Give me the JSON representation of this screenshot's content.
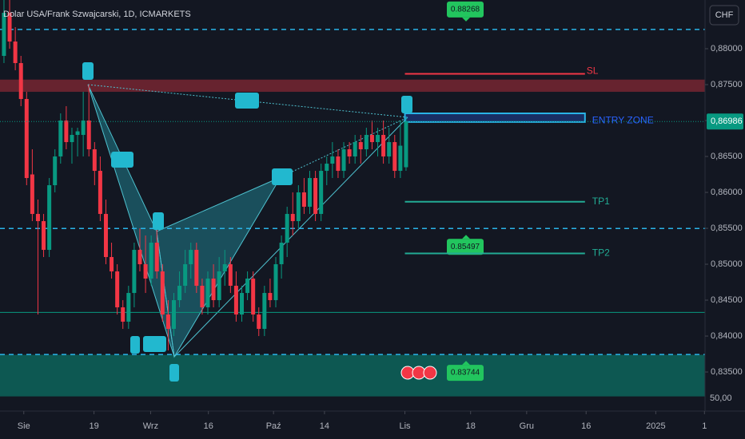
{
  "header": {
    "title": "Dolar USA/Frank Szwajcarski, 1D, ICMARKETS",
    "currency": "CHF"
  },
  "chart_data": {
    "type": "candlestick",
    "up_color": "#089981",
    "down_color": "#f23645",
    "ylim": [
      0.82956,
      0.88678
    ],
    "yticks": [
      {
        "value": 0.835,
        "label": "0,83500"
      },
      {
        "value": 0.84,
        "label": "0,84000"
      },
      {
        "value": 0.845,
        "label": "0,84500"
      },
      {
        "value": 0.85,
        "label": "0,85000"
      },
      {
        "value": 0.855,
        "label": "0,85500"
      },
      {
        "value": 0.86,
        "label": "0,86000"
      },
      {
        "value": 0.865,
        "label": "0,86500"
      },
      {
        "value": 0.87,
        "label": "0,87000"
      },
      {
        "value": 0.875,
        "label": "0,87500"
      },
      {
        "value": 0.88,
        "label": "0,88000"
      }
    ],
    "extra_axis_label": "50,00",
    "xlim": [
      -0.7,
      123.8
    ],
    "xticks": [
      {
        "value": 3.5,
        "label": "Sie"
      },
      {
        "value": 15.9,
        "label": "19"
      },
      {
        "value": 25.9,
        "label": "Wrz"
      },
      {
        "value": 36.1,
        "label": "16"
      },
      {
        "value": 47.6,
        "label": "Paź"
      },
      {
        "value": 56.6,
        "label": "14"
      },
      {
        "value": 70.8,
        "label": "Lis"
      },
      {
        "value": 82.4,
        "label": "18"
      },
      {
        "value": 92.3,
        "label": "Gru"
      },
      {
        "value": 102.8,
        "label": "16"
      },
      {
        "value": 115.1,
        "label": "2025"
      },
      {
        "value": 123.7,
        "label": "1"
      }
    ],
    "ohlc": [
      [
        0.879,
        0.887,
        0.878,
        0.885
      ],
      [
        0.885,
        0.8868,
        0.88,
        0.881
      ],
      [
        0.881,
        0.883,
        0.877,
        0.878
      ],
      [
        0.878,
        0.879,
        0.872,
        0.873
      ],
      [
        0.873,
        0.874,
        0.861,
        0.862
      ],
      [
        0.8625,
        0.866,
        0.856,
        0.857
      ],
      [
        0.857,
        0.859,
        0.843,
        0.856
      ],
      [
        0.856,
        0.857,
        0.851,
        0.852
      ],
      [
        0.852,
        0.862,
        0.851,
        0.861
      ],
      [
        0.861,
        0.866,
        0.86,
        0.865
      ],
      [
        0.865,
        0.871,
        0.864,
        0.87
      ],
      [
        0.87,
        0.872,
        0.866,
        0.867
      ],
      [
        0.867,
        0.869,
        0.864,
        0.868
      ],
      [
        0.868,
        0.869,
        0.865,
        0.8685
      ],
      [
        0.868,
        0.874,
        0.865,
        0.87
      ],
      [
        0.87,
        0.875,
        0.865,
        0.866
      ],
      [
        0.866,
        0.867,
        0.861,
        0.863
      ],
      [
        0.863,
        0.865,
        0.856,
        0.857
      ],
      [
        0.857,
        0.859,
        0.85,
        0.851
      ],
      [
        0.851,
        0.853,
        0.848,
        0.849
      ],
      [
        0.849,
        0.85,
        0.843,
        0.844
      ],
      [
        0.844,
        0.845,
        0.841,
        0.842
      ],
      [
        0.842,
        0.847,
        0.841,
        0.846
      ],
      [
        0.846,
        0.853,
        0.844,
        0.852
      ],
      [
        0.852,
        0.855,
        0.849,
        0.85
      ],
      [
        0.85,
        0.854,
        0.846,
        0.848
      ],
      [
        0.848,
        0.854,
        0.847,
        0.853
      ],
      [
        0.853,
        0.855,
        0.848,
        0.849
      ],
      [
        0.849,
        0.85,
        0.842,
        0.843
      ],
      [
        0.843,
        0.845,
        0.838,
        0.841
      ],
      [
        0.841,
        0.846,
        0.84,
        0.845
      ],
      [
        0.845,
        0.849,
        0.844,
        0.847
      ],
      [
        0.847,
        0.852,
        0.846,
        0.85
      ],
      [
        0.85,
        0.853,
        0.848,
        0.852
      ],
      [
        0.852,
        0.853,
        0.846,
        0.847
      ],
      [
        0.847,
        0.848,
        0.843,
        0.844
      ],
      [
        0.844,
        0.849,
        0.843,
        0.848
      ],
      [
        0.848,
        0.85,
        0.844,
        0.845
      ],
      [
        0.845,
        0.851,
        0.844,
        0.849
      ],
      [
        0.849,
        0.852,
        0.847,
        0.85
      ],
      [
        0.85,
        0.851,
        0.846,
        0.847
      ],
      [
        0.847,
        0.849,
        0.842,
        0.843
      ],
      [
        0.843,
        0.847,
        0.842,
        0.846
      ],
      [
        0.846,
        0.849,
        0.845,
        0.848
      ],
      [
        0.848,
        0.849,
        0.842,
        0.843
      ],
      [
        0.843,
        0.844,
        0.84,
        0.841
      ],
      [
        0.841,
        0.847,
        0.84,
        0.846
      ],
      [
        0.846,
        0.848,
        0.844,
        0.845
      ],
      [
        0.845,
        0.851,
        0.844,
        0.85
      ],
      [
        0.85,
        0.854,
        0.848,
        0.853
      ],
      [
        0.853,
        0.858,
        0.851,
        0.857
      ],
      [
        0.857,
        0.86,
        0.854,
        0.856
      ],
      [
        0.856,
        0.861,
        0.855,
        0.86
      ],
      [
        0.86,
        0.862,
        0.857,
        0.858
      ],
      [
        0.858,
        0.863,
        0.857,
        0.862
      ],
      [
        0.862,
        0.863,
        0.856,
        0.857
      ],
      [
        0.857,
        0.864,
        0.856,
        0.863
      ],
      [
        0.863,
        0.865,
        0.861,
        0.864
      ],
      [
        0.864,
        0.867,
        0.862,
        0.865
      ],
      [
        0.865,
        0.866,
        0.862,
        0.863
      ],
      [
        0.863,
        0.867,
        0.862,
        0.866
      ],
      [
        0.866,
        0.867,
        0.864,
        0.865
      ],
      [
        0.865,
        0.868,
        0.864,
        0.867
      ],
      [
        0.867,
        0.868,
        0.864,
        0.866
      ],
      [
        0.866,
        0.869,
        0.865,
        0.868
      ],
      [
        0.868,
        0.87,
        0.866,
        0.867
      ],
      [
        0.867,
        0.869,
        0.865,
        0.868
      ],
      [
        0.868,
        0.87,
        0.864,
        0.865
      ],
      [
        0.865,
        0.869,
        0.864,
        0.867
      ],
      [
        0.867,
        0.868,
        0.862,
        0.863
      ],
      [
        0.863,
        0.87,
        0.862,
        0.8665
      ],
      [
        0.8635,
        0.8705,
        0.863,
        0.86986
      ]
    ],
    "last_price_label": "0,86986",
    "zones": [
      {
        "from": 0.874,
        "to": 0.8757,
        "color": "rgba(242,54,69,0.38)"
      },
      {
        "from": 0.8316,
        "to": 0.8374,
        "color": "rgba(8,153,129,0.5)"
      }
    ],
    "support_line": 0.8433,
    "price_lines": [
      0.88268,
      0.85497,
      0.83744
    ],
    "levels_x": [
      70.8,
      102.6
    ],
    "levels": [
      {
        "name": "SL",
        "value": 0.8765,
        "color": "#f23645"
      },
      {
        "name": "ENTRY ZONE",
        "value": 0.8698,
        "to": 0.871,
        "color": "#2962ff"
      },
      {
        "name": "TP1",
        "value": 0.8587,
        "color": "#22ab94"
      },
      {
        "name": "TP2",
        "value": 0.8515,
        "color": "#22ab94"
      }
    ]
  }
}
